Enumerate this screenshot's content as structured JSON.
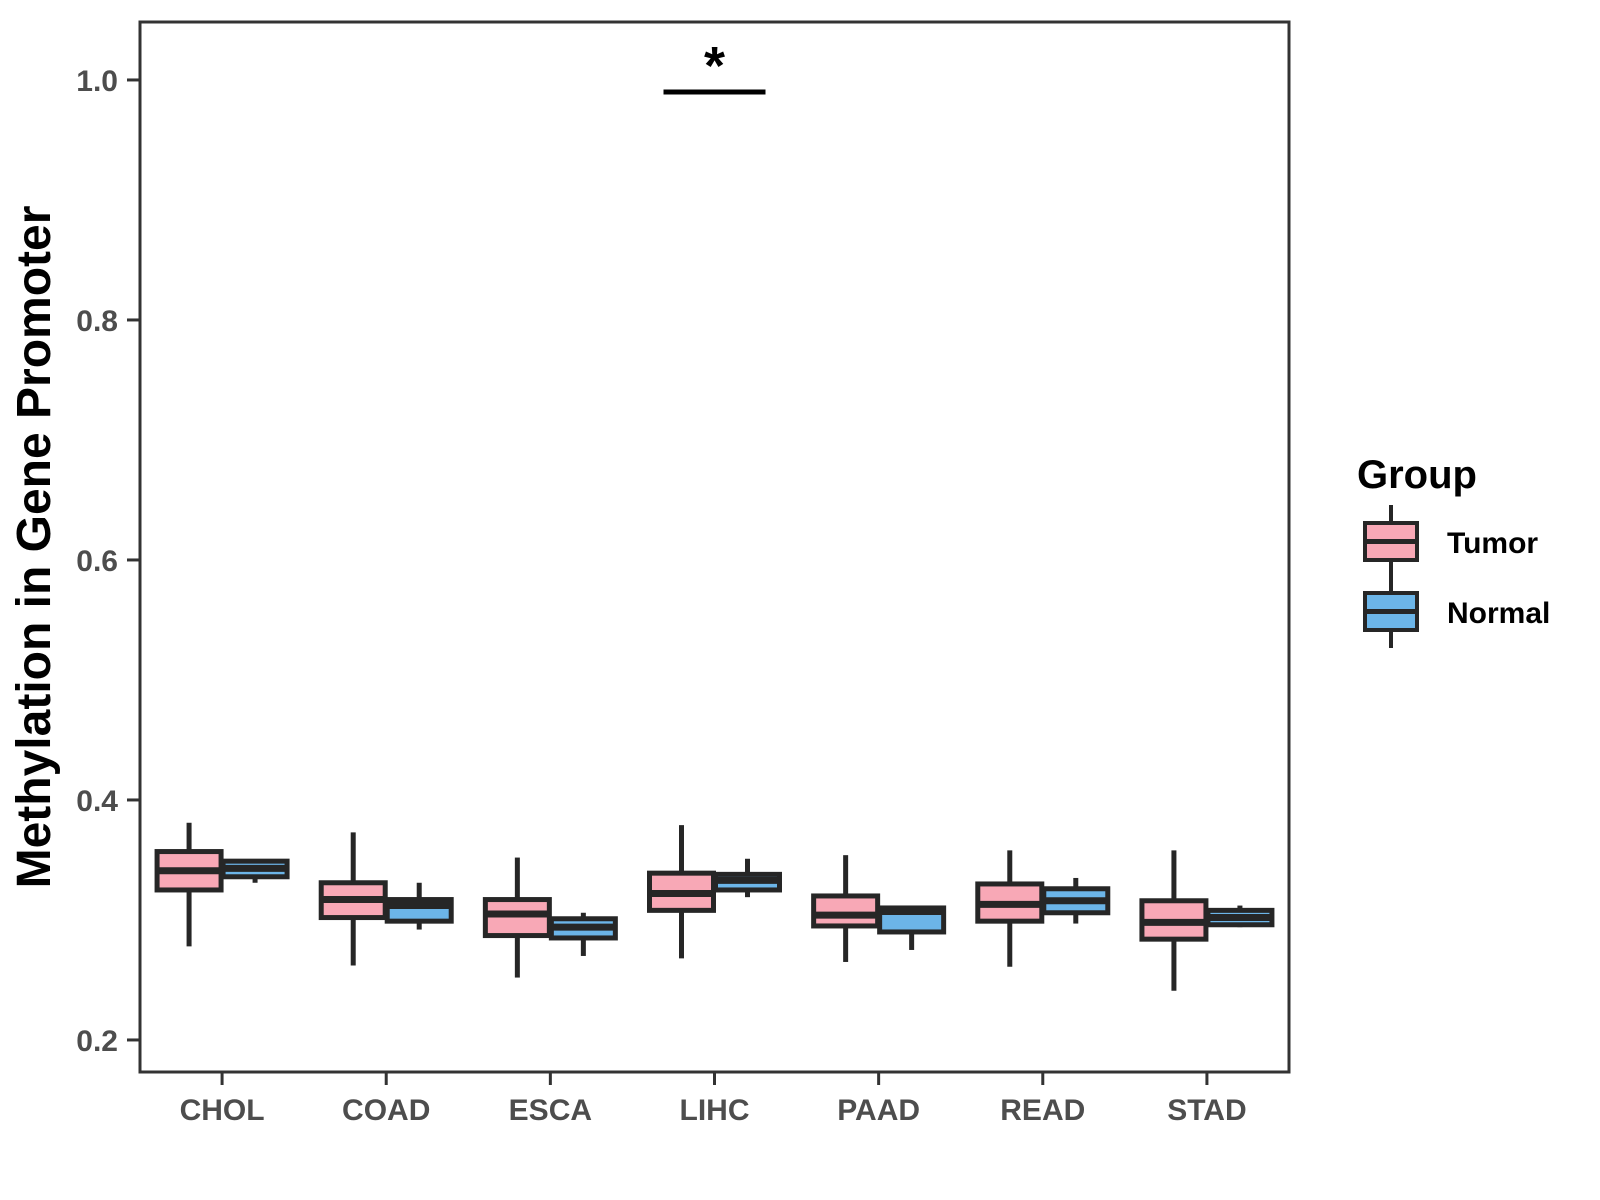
{
  "chart_data": {
    "type": "boxplot",
    "title": "",
    "xlabel": "",
    "ylabel": "Methylation in Gene Promoter",
    "categories": [
      "CHOL",
      "COAD",
      "ESCA",
      "LIHC",
      "PAAD",
      "READ",
      "STAD"
    ],
    "yticks": [
      0.2,
      0.4,
      0.6,
      0.8,
      1.0
    ],
    "ytick_labels": [
      "0.2",
      "0.4",
      "0.6",
      "0.8",
      "1.0"
    ],
    "ylim": [
      0.1733,
      1.0483
    ],
    "grid": false,
    "legend_title": "Group",
    "legend_position": "right",
    "series": [
      {
        "name": "Tumor",
        "fill": "#F8A8B6",
        "boxes": [
          {
            "category": "CHOL",
            "low": 0.278,
            "q1": 0.325,
            "median": 0.341,
            "q3": 0.357,
            "high": 0.381
          },
          {
            "category": "COAD",
            "low": 0.262,
            "q1": 0.302,
            "median": 0.317,
            "q3": 0.331,
            "high": 0.373
          },
          {
            "category": "ESCA",
            "low": 0.252,
            "q1": 0.287,
            "median": 0.305,
            "q3": 0.317,
            "high": 0.352
          },
          {
            "category": "LIHC",
            "low": 0.268,
            "q1": 0.308,
            "median": 0.322,
            "q3": 0.339,
            "high": 0.379
          },
          {
            "category": "PAAD",
            "low": 0.265,
            "q1": 0.295,
            "median": 0.304,
            "q3": 0.32,
            "high": 0.354
          },
          {
            "category": "READ",
            "low": 0.261,
            "q1": 0.299,
            "median": 0.313,
            "q3": 0.33,
            "high": 0.358
          },
          {
            "category": "STAD",
            "low": 0.241,
            "q1": 0.284,
            "median": 0.298,
            "q3": 0.316,
            "high": 0.358
          }
        ]
      },
      {
        "name": "Normal",
        "fill": "#6CB5E8",
        "boxes": [
          {
            "category": "CHOL",
            "low": 0.331,
            "q1": 0.336,
            "median": 0.343,
            "q3": 0.349,
            "high": 0.349
          },
          {
            "category": "COAD",
            "low": 0.292,
            "q1": 0.299,
            "median": 0.312,
            "q3": 0.317,
            "high": 0.331
          },
          {
            "category": "ESCA",
            "low": 0.27,
            "q1": 0.285,
            "median": 0.294,
            "q3": 0.301,
            "high": 0.306
          },
          {
            "category": "LIHC",
            "low": 0.319,
            "q1": 0.325,
            "median": 0.333,
            "q3": 0.338,
            "high": 0.351
          },
          {
            "category": "PAAD",
            "low": 0.275,
            "q1": 0.29,
            "median": 0.307,
            "q3": 0.31,
            "high": 0.31
          },
          {
            "category": "READ",
            "low": 0.297,
            "q1": 0.306,
            "median": 0.316,
            "q3": 0.326,
            "high": 0.335
          },
          {
            "category": "STAD",
            "low": 0.294,
            "q1": 0.296,
            "median": 0.302,
            "q3": 0.308,
            "high": 0.312
          }
        ]
      }
    ],
    "annotation": {
      "label": "*",
      "category": "LIHC",
      "bar_y": 0.99
    }
  },
  "style": {
    "background": "#FFFFFF",
    "box_border_color": "#262626",
    "panel_border_color": "#333333",
    "tick_color": "#333333",
    "tick_label_color": "#4D4D4D",
    "annotation_color": "#000000"
  }
}
